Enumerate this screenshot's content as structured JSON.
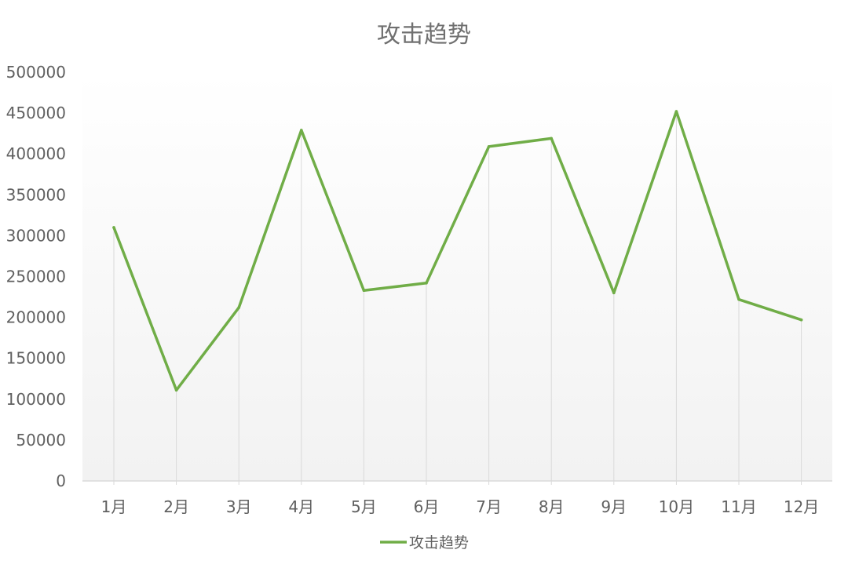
{
  "chart_data": {
    "type": "line",
    "title": "攻击趋势",
    "xlabel": "",
    "ylabel": "",
    "categories": [
      "1月",
      "2月",
      "3月",
      "4月",
      "5月",
      "6月",
      "7月",
      "8月",
      "9月",
      "10月",
      "11月",
      "12月"
    ],
    "series": [
      {
        "name": "攻击趋势",
        "color": "#70ad47",
        "values": [
          310000,
          111000,
          212000,
          429000,
          233000,
          242000,
          409000,
          419000,
          230000,
          452000,
          222000,
          197000
        ]
      }
    ],
    "ylim": [
      0,
      500000
    ],
    "yticks": [
      "0",
      "50000",
      "100000",
      "150000",
      "200000",
      "250000",
      "300000",
      "350000",
      "400000",
      "450000",
      "500000"
    ],
    "yticks_values": [
      0,
      50000,
      100000,
      150000,
      200000,
      250000,
      300000,
      350000,
      400000,
      450000,
      500000
    ],
    "grid": "vertical drop lines",
    "legend": "bottom-center",
    "background_gradient": [
      "#ffffff",
      "#f2f2f2"
    ],
    "axis_color": "#d9d9d9"
  }
}
